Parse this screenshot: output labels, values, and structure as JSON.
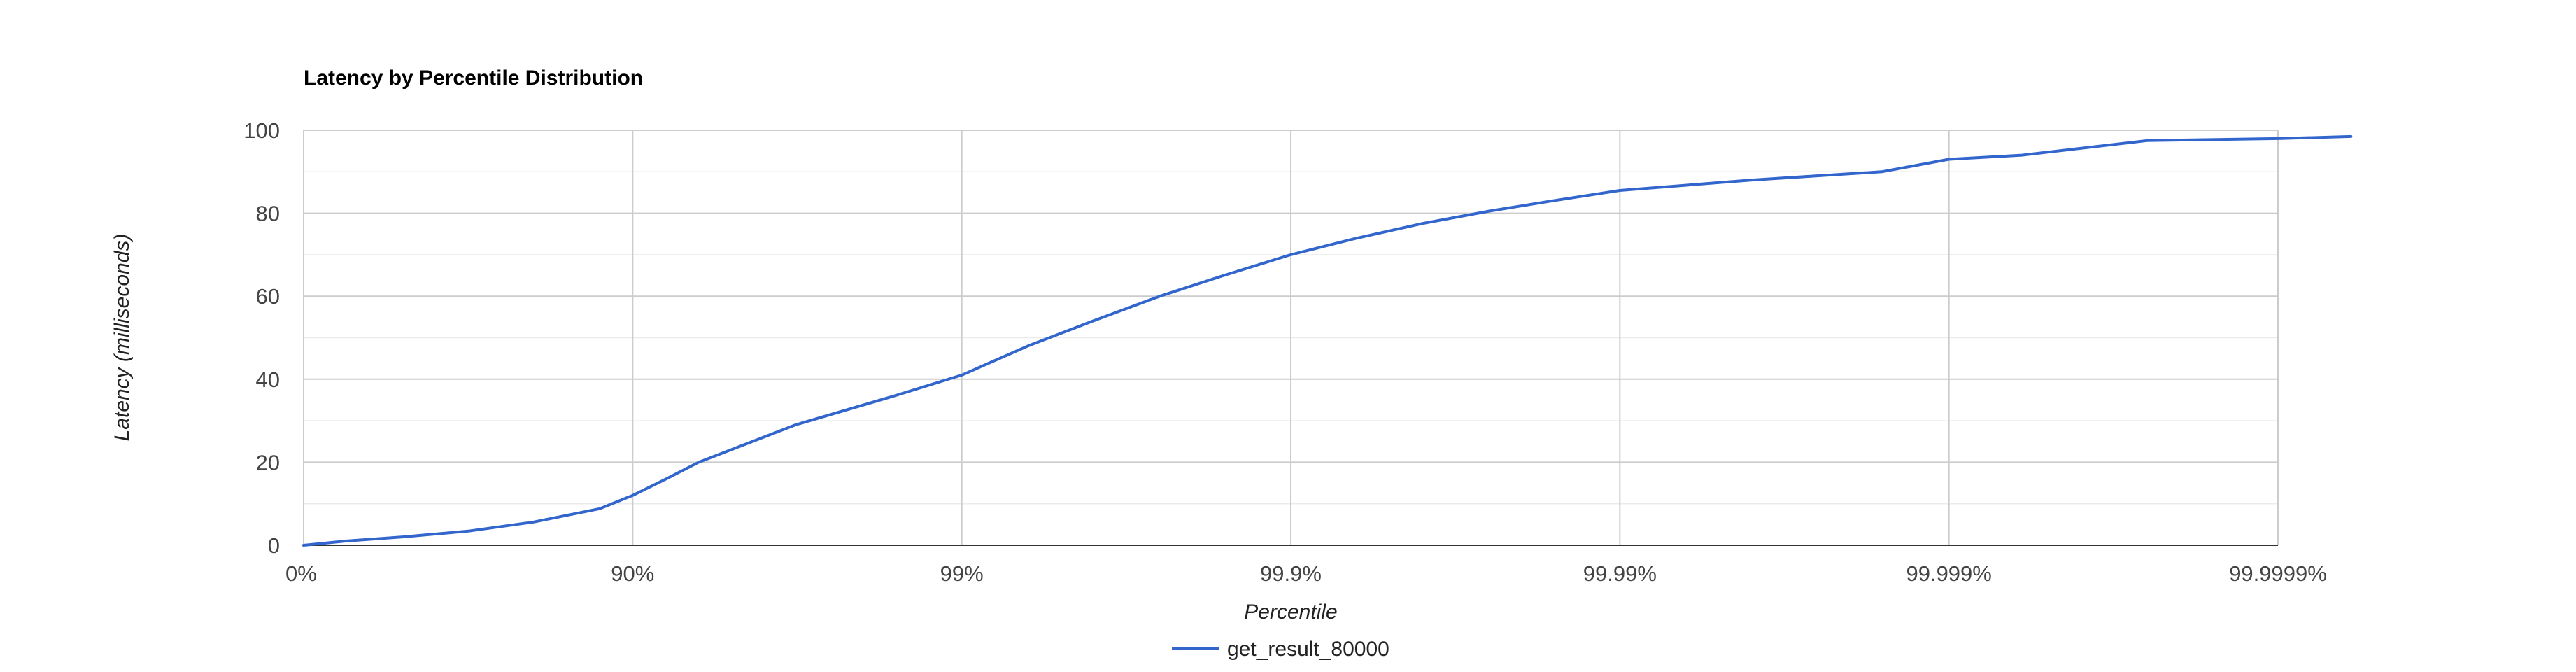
{
  "chart_data": {
    "type": "line",
    "title": "Latency by Percentile Distribution",
    "xlabel": "Percentile",
    "ylabel": "Latency (milliseconds)",
    "x_scale": "log (100 / (100 - percentile))",
    "x_ticks": [
      "0%",
      "90%",
      "99%",
      "99.9%",
      "99.99%",
      "99.999%",
      "99.9999%"
    ],
    "y_ticks": [
      "0",
      "20",
      "40",
      "60",
      "80",
      "100"
    ],
    "ylim": [
      0,
      100
    ],
    "grid": true,
    "legend_position": "bottom",
    "series": [
      {
        "name": "get_result_80000",
        "color": "#3366cc",
        "points": [
          {
            "percentile": "0%",
            "latency": 0
          },
          {
            "percentile": "25%",
            "latency": 1
          },
          {
            "percentile": "50%",
            "latency": 2
          },
          {
            "percentile": "68.4%",
            "latency": 3.4
          },
          {
            "percentile": "80%",
            "latency": 5.6
          },
          {
            "percentile": "87.4%",
            "latency": 8.8
          },
          {
            "percentile": "90%",
            "latency": 12
          },
          {
            "percentile": "92.1%",
            "latency": 16
          },
          {
            "percentile": "93.7%",
            "latency": 20
          },
          {
            "percentile": "96.8%",
            "latency": 29
          },
          {
            "percentile": "98.4%",
            "latency": 36
          },
          {
            "percentile": "99%",
            "latency": 41
          },
          {
            "percentile": "99.37%",
            "latency": 48
          },
          {
            "percentile": "99.6%",
            "latency": 54
          },
          {
            "percentile": "99.75%",
            "latency": 60
          },
          {
            "percentile": "99.84%",
            "latency": 65
          },
          {
            "percentile": "99.9%",
            "latency": 70
          },
          {
            "percentile": "99.937%",
            "latency": 74
          },
          {
            "percentile": "99.96%",
            "latency": 77.5
          },
          {
            "percentile": "99.975%",
            "latency": 80.5
          },
          {
            "percentile": "99.984%",
            "latency": 83
          },
          {
            "percentile": "99.99%",
            "latency": 85.5
          },
          {
            "percentile": "99.996%",
            "latency": 88
          },
          {
            "percentile": "99.9984%",
            "latency": 90
          },
          {
            "percentile": "99.999%",
            "latency": 93
          },
          {
            "percentile": "99.9994%",
            "latency": 94
          },
          {
            "percentile": "99.99975%",
            "latency": 97.5
          },
          {
            "percentile": "99.9999%",
            "latency": 98
          },
          {
            "percentile": "99.99994%",
            "latency": 98.5
          }
        ]
      }
    ]
  }
}
